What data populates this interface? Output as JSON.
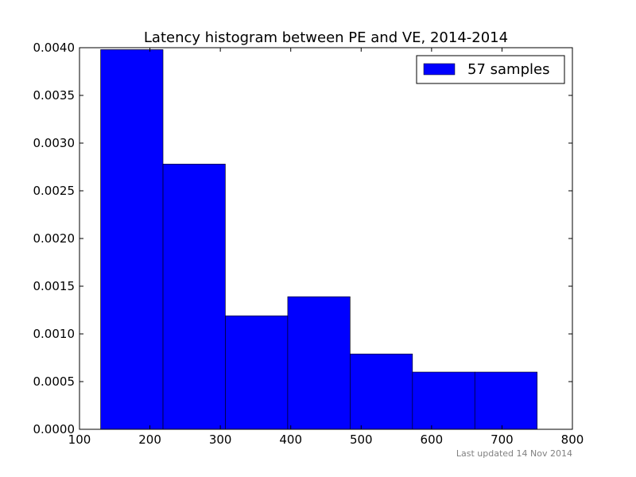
{
  "chart_data": {
    "type": "bar",
    "title": "Latency histogram between PE and VE, 2014-2014",
    "xlabel": "",
    "ylabel": "",
    "xlim": [
      100,
      800
    ],
    "ylim": [
      0,
      0.004
    ],
    "bins": [
      {
        "x0": 130,
        "x1": 218.6,
        "density": 0.00398
      },
      {
        "x0": 218.6,
        "x1": 307.1,
        "density": 0.00278
      },
      {
        "x0": 307.1,
        "x1": 395.7,
        "density": 0.00119
      },
      {
        "x0": 395.7,
        "x1": 484.3,
        "density": 0.00139
      },
      {
        "x0": 484.3,
        "x1": 572.9,
        "density": 0.00079
      },
      {
        "x0": 572.9,
        "x1": 661.4,
        "density": 0.0006
      },
      {
        "x0": 661.4,
        "x1": 750,
        "density": 0.0006
      }
    ],
    "x_ticks": [
      "100",
      "200",
      "300",
      "400",
      "500",
      "600",
      "700",
      "800"
    ],
    "y_ticks": [
      "0.0000",
      "0.0005",
      "0.0010",
      "0.0015",
      "0.0020",
      "0.0025",
      "0.0030",
      "0.0035",
      "0.0040"
    ],
    "legend": {
      "label": "57 samples",
      "placement": "top-right"
    },
    "bar_color": "#0000ff",
    "grid": false
  },
  "footer": {
    "text": "Last updated 14 Nov 2014"
  }
}
